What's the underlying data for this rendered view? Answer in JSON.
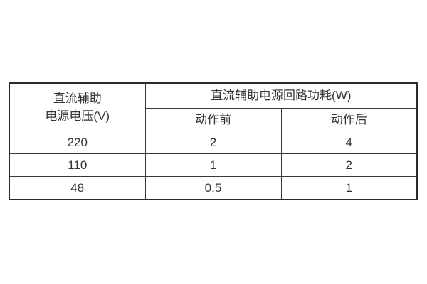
{
  "page": {
    "background": "#ffffff"
  },
  "table": {
    "voltage_header_line1": "直流辅助",
    "voltage_header_line2": "电源电压(V)",
    "consumption_header": "直流辅助电源回路功耗(W)",
    "sub_headers": [
      "动作前",
      "动作后"
    ],
    "rows": [
      {
        "voltage": "220",
        "before": "2",
        "after": "4"
      },
      {
        "voltage": "110",
        "before": "1",
        "after": "2"
      },
      {
        "voltage": "48",
        "before": "0.5",
        "after": "1"
      }
    ],
    "colors": {
      "border_outer": "#2b2b2b",
      "border_inner": "#383838",
      "text": "#333333"
    }
  }
}
